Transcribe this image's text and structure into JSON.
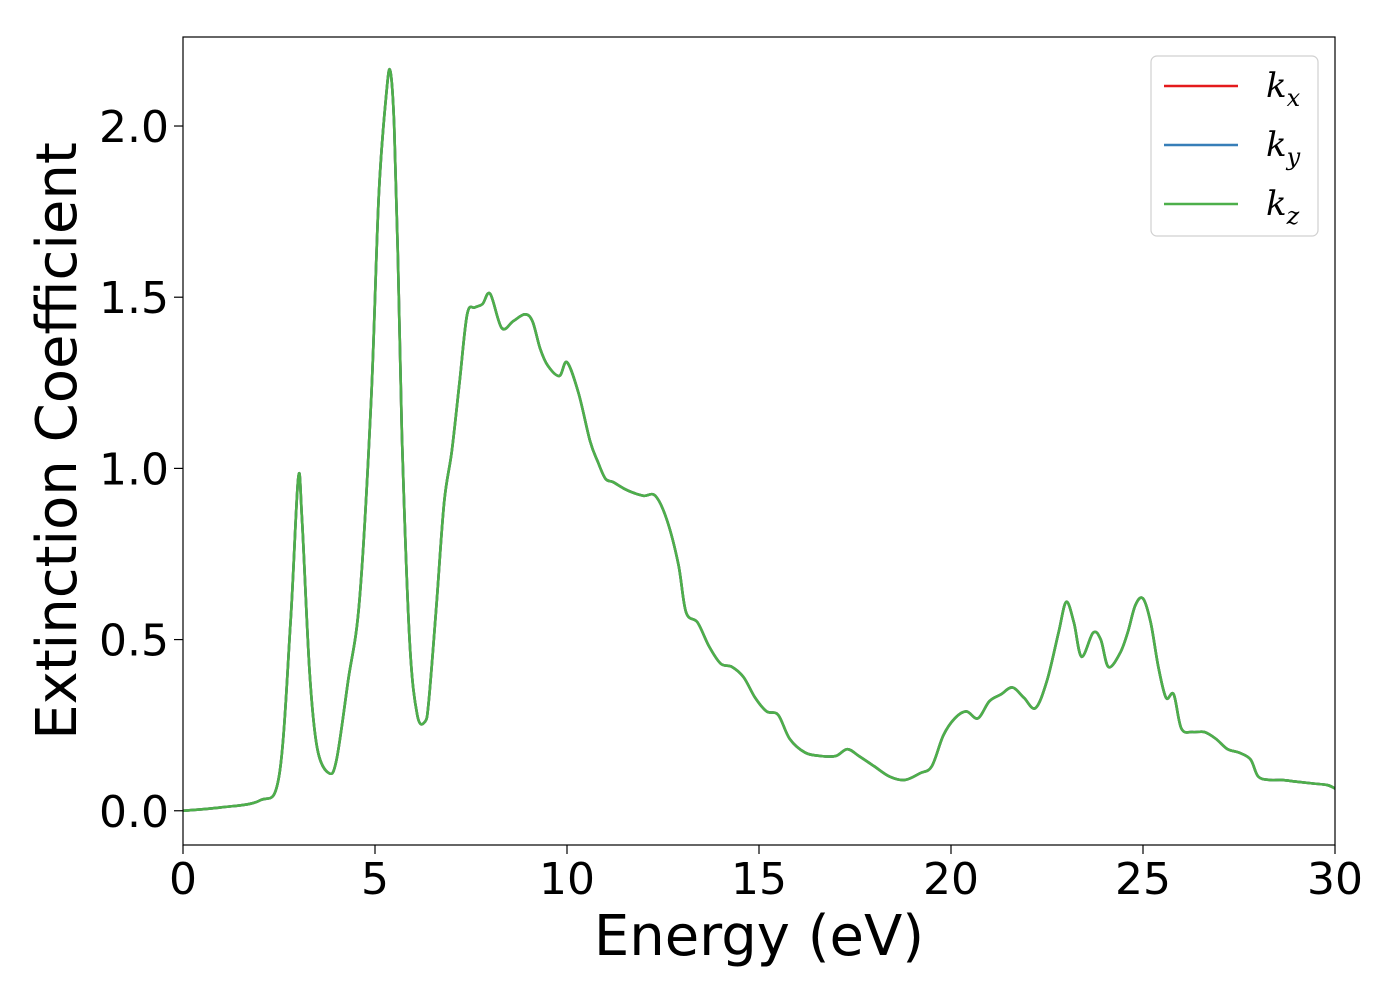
{
  "chart_data": {
    "type": "line",
    "title": "",
    "xlabel": "Energy (eV)",
    "ylabel": "Extinction Coefficient",
    "xlim": [
      0,
      30
    ],
    "ylim": [
      -0.1,
      2.26
    ],
    "xticks": [
      0,
      5,
      10,
      15,
      20,
      25,
      30
    ],
    "xtick_labels": [
      "0",
      "5",
      "10",
      "15",
      "20",
      "25",
      "30"
    ],
    "yticks": [
      0.0,
      0.5,
      1.0,
      1.5,
      2.0
    ],
    "ytick_labels": [
      "0.0",
      "0.5",
      "1.0",
      "1.5",
      "2.0"
    ],
    "grid": false,
    "legend_position": "top-right",
    "series": [
      {
        "name": "k_x",
        "label_main": "k",
        "label_sub": "x",
        "color": "#e41a1c",
        "x": [
          0,
          1,
          2,
          2.5,
          2.8,
          3.0,
          3.1,
          3.3,
          3.5,
          3.8,
          4.0,
          4.3,
          4.6,
          4.9,
          5.1,
          5.3,
          5.4,
          5.5,
          5.6,
          5.7,
          5.9,
          6.1,
          6.3,
          6.4,
          6.6,
          6.8,
          7.0,
          7.2,
          7.4,
          7.6,
          7.8,
          8.0,
          8.3,
          8.6,
          8.9,
          9.1,
          9.3,
          9.5,
          9.8,
          10.0,
          10.3,
          10.6,
          10.8,
          11.0,
          11.2,
          11.5,
          11.7,
          12.0,
          12.3,
          12.6,
          12.9,
          13.1,
          13.4,
          13.7,
          14.0,
          14.3,
          14.6,
          14.9,
          15.2,
          15.5,
          15.8,
          16.2,
          16.6,
          17.0,
          17.3,
          17.6,
          18.0,
          18.4,
          18.8,
          19.2,
          19.5,
          19.8,
          20.1,
          20.4,
          20.7,
          21.0,
          21.3,
          21.6,
          21.9,
          22.2,
          22.5,
          22.8,
          23.0,
          23.2,
          23.4,
          23.7,
          23.9,
          24.1,
          24.4,
          24.6,
          24.8,
          25.0,
          25.2,
          25.4,
          25.6,
          25.8,
          26.0,
          26.3,
          26.6,
          26.9,
          27.2,
          27.5,
          27.8,
          28.0,
          28.3,
          28.6,
          29.0,
          29.4,
          29.8,
          30.0
        ],
        "y": [
          0.0,
          0.01,
          0.03,
          0.1,
          0.55,
          0.97,
          0.85,
          0.4,
          0.18,
          0.11,
          0.15,
          0.38,
          0.62,
          1.2,
          1.8,
          2.1,
          2.16,
          2.0,
          1.6,
          1.1,
          0.5,
          0.28,
          0.26,
          0.32,
          0.6,
          0.9,
          1.05,
          1.25,
          1.45,
          1.47,
          1.48,
          1.51,
          1.41,
          1.43,
          1.45,
          1.43,
          1.35,
          1.3,
          1.27,
          1.31,
          1.22,
          1.08,
          1.02,
          0.97,
          0.96,
          0.94,
          0.93,
          0.92,
          0.92,
          0.85,
          0.72,
          0.58,
          0.55,
          0.48,
          0.43,
          0.42,
          0.39,
          0.33,
          0.29,
          0.28,
          0.21,
          0.17,
          0.16,
          0.16,
          0.18,
          0.16,
          0.13,
          0.1,
          0.09,
          0.11,
          0.13,
          0.22,
          0.27,
          0.29,
          0.27,
          0.32,
          0.34,
          0.36,
          0.33,
          0.3,
          0.38,
          0.52,
          0.61,
          0.55,
          0.45,
          0.52,
          0.5,
          0.42,
          0.46,
          0.52,
          0.6,
          0.62,
          0.55,
          0.42,
          0.33,
          0.34,
          0.24,
          0.23,
          0.23,
          0.21,
          0.18,
          0.17,
          0.15,
          0.1,
          0.09,
          0.09,
          0.085,
          0.08,
          0.075,
          0.065
        ]
      },
      {
        "name": "k_y",
        "label_main": "k",
        "label_sub": "y",
        "color": "#377eb8",
        "x": [
          0,
          1,
          2,
          2.5,
          2.8,
          3.0,
          3.1,
          3.3,
          3.5,
          3.8,
          4.0,
          4.3,
          4.6,
          4.9,
          5.1,
          5.3,
          5.4,
          5.5,
          5.6,
          5.7,
          5.9,
          6.1,
          6.3,
          6.4,
          6.6,
          6.8,
          7.0,
          7.2,
          7.4,
          7.6,
          7.8,
          8.0,
          8.3,
          8.6,
          8.9,
          9.1,
          9.3,
          9.5,
          9.8,
          10.0,
          10.3,
          10.6,
          10.8,
          11.0,
          11.2,
          11.5,
          11.7,
          12.0,
          12.3,
          12.6,
          12.9,
          13.1,
          13.4,
          13.7,
          14.0,
          14.3,
          14.6,
          14.9,
          15.2,
          15.5,
          15.8,
          16.2,
          16.6,
          17.0,
          17.3,
          17.6,
          18.0,
          18.4,
          18.8,
          19.2,
          19.5,
          19.8,
          20.1,
          20.4,
          20.7,
          21.0,
          21.3,
          21.6,
          21.9,
          22.2,
          22.5,
          22.8,
          23.0,
          23.2,
          23.4,
          23.7,
          23.9,
          24.1,
          24.4,
          24.6,
          24.8,
          25.0,
          25.2,
          25.4,
          25.6,
          25.8,
          26.0,
          26.3,
          26.6,
          26.9,
          27.2,
          27.5,
          27.8,
          28.0,
          28.3,
          28.6,
          29.0,
          29.4,
          29.8,
          30.0
        ],
        "y": [
          0.0,
          0.01,
          0.03,
          0.1,
          0.55,
          0.97,
          0.85,
          0.4,
          0.18,
          0.11,
          0.15,
          0.38,
          0.62,
          1.2,
          1.8,
          2.1,
          2.16,
          2.0,
          1.6,
          1.1,
          0.5,
          0.28,
          0.26,
          0.32,
          0.6,
          0.9,
          1.05,
          1.25,
          1.45,
          1.47,
          1.48,
          1.51,
          1.41,
          1.43,
          1.45,
          1.43,
          1.35,
          1.3,
          1.27,
          1.31,
          1.22,
          1.08,
          1.02,
          0.97,
          0.96,
          0.94,
          0.93,
          0.92,
          0.92,
          0.85,
          0.72,
          0.58,
          0.55,
          0.48,
          0.43,
          0.42,
          0.39,
          0.33,
          0.29,
          0.28,
          0.21,
          0.17,
          0.16,
          0.16,
          0.18,
          0.16,
          0.13,
          0.1,
          0.09,
          0.11,
          0.13,
          0.22,
          0.27,
          0.29,
          0.27,
          0.32,
          0.34,
          0.36,
          0.33,
          0.3,
          0.38,
          0.52,
          0.61,
          0.55,
          0.45,
          0.52,
          0.5,
          0.42,
          0.46,
          0.52,
          0.6,
          0.62,
          0.55,
          0.42,
          0.33,
          0.34,
          0.24,
          0.23,
          0.23,
          0.21,
          0.18,
          0.17,
          0.15,
          0.1,
          0.09,
          0.09,
          0.085,
          0.08,
          0.075,
          0.065
        ]
      },
      {
        "name": "k_z",
        "label_main": "k",
        "label_sub": "z",
        "color": "#4daf4a",
        "x": [
          0,
          1,
          2,
          2.5,
          2.8,
          3.0,
          3.1,
          3.3,
          3.5,
          3.8,
          4.0,
          4.3,
          4.6,
          4.9,
          5.1,
          5.3,
          5.4,
          5.5,
          5.6,
          5.7,
          5.9,
          6.1,
          6.3,
          6.4,
          6.6,
          6.8,
          7.0,
          7.2,
          7.4,
          7.6,
          7.8,
          8.0,
          8.3,
          8.6,
          8.9,
          9.1,
          9.3,
          9.5,
          9.8,
          10.0,
          10.3,
          10.6,
          10.8,
          11.0,
          11.2,
          11.5,
          11.7,
          12.0,
          12.3,
          12.6,
          12.9,
          13.1,
          13.4,
          13.7,
          14.0,
          14.3,
          14.6,
          14.9,
          15.2,
          15.5,
          15.8,
          16.2,
          16.6,
          17.0,
          17.3,
          17.6,
          18.0,
          18.4,
          18.8,
          19.2,
          19.5,
          19.8,
          20.1,
          20.4,
          20.7,
          21.0,
          21.3,
          21.6,
          21.9,
          22.2,
          22.5,
          22.8,
          23.0,
          23.2,
          23.4,
          23.7,
          23.9,
          24.1,
          24.4,
          24.6,
          24.8,
          25.0,
          25.2,
          25.4,
          25.6,
          25.8,
          26.0,
          26.3,
          26.6,
          26.9,
          27.2,
          27.5,
          27.8,
          28.0,
          28.3,
          28.6,
          29.0,
          29.4,
          29.8,
          30.0
        ],
        "y": [
          0.0,
          0.01,
          0.03,
          0.1,
          0.55,
          0.97,
          0.85,
          0.4,
          0.18,
          0.11,
          0.15,
          0.38,
          0.62,
          1.2,
          1.8,
          2.1,
          2.16,
          2.0,
          1.6,
          1.1,
          0.5,
          0.28,
          0.26,
          0.32,
          0.6,
          0.9,
          1.05,
          1.25,
          1.45,
          1.47,
          1.48,
          1.51,
          1.41,
          1.43,
          1.45,
          1.43,
          1.35,
          1.3,
          1.27,
          1.31,
          1.22,
          1.08,
          1.02,
          0.97,
          0.96,
          0.94,
          0.93,
          0.92,
          0.92,
          0.85,
          0.72,
          0.58,
          0.55,
          0.48,
          0.43,
          0.42,
          0.39,
          0.33,
          0.29,
          0.28,
          0.21,
          0.17,
          0.16,
          0.16,
          0.18,
          0.16,
          0.13,
          0.1,
          0.09,
          0.11,
          0.13,
          0.22,
          0.27,
          0.29,
          0.27,
          0.32,
          0.34,
          0.36,
          0.33,
          0.3,
          0.38,
          0.52,
          0.61,
          0.55,
          0.45,
          0.52,
          0.5,
          0.42,
          0.46,
          0.52,
          0.6,
          0.62,
          0.55,
          0.42,
          0.33,
          0.34,
          0.24,
          0.23,
          0.23,
          0.21,
          0.18,
          0.17,
          0.15,
          0.1,
          0.09,
          0.09,
          0.085,
          0.08,
          0.075,
          0.065
        ]
      }
    ]
  }
}
